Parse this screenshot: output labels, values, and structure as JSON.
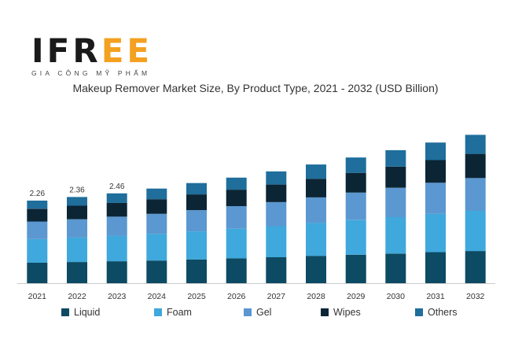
{
  "logo": {
    "text": "IFREE",
    "subtitle": "GIA CÔNG MỸ PHẨM"
  },
  "chart_data": {
    "type": "bar",
    "stacked": true,
    "title": "Makeup Remover Market Size, By Product Type, 2021 - 2032 (USD Billion)",
    "xlabel": "",
    "ylabel": "",
    "ylim": [
      0,
      5
    ],
    "grid": false,
    "legend_position": "bottom",
    "categories": [
      "2021",
      "2022",
      "2023",
      "2024",
      "2025",
      "2026",
      "2027",
      "2028",
      "2029",
      "2030",
      "2031",
      "2032"
    ],
    "series": [
      {
        "name": "Liquid",
        "color": "#0d4a63",
        "values": [
          0.56,
          0.58,
          0.6,
          0.62,
          0.65,
          0.68,
          0.71,
          0.75,
          0.78,
          0.81,
          0.85,
          0.88
        ]
      },
      {
        "name": "Foam",
        "color": "#3fa8dc",
        "values": [
          0.65,
          0.67,
          0.7,
          0.73,
          0.77,
          0.81,
          0.85,
          0.9,
          0.95,
          1.0,
          1.05,
          1.1
        ]
      },
      {
        "name": "Gel",
        "color": "#5b97d0",
        "values": [
          0.48,
          0.5,
          0.52,
          0.55,
          0.58,
          0.62,
          0.66,
          0.7,
          0.75,
          0.8,
          0.85,
          0.9
        ]
      },
      {
        "name": "Wipes",
        "color": "#0b2535",
        "values": [
          0.35,
          0.37,
          0.38,
          0.4,
          0.43,
          0.45,
          0.48,
          0.51,
          0.54,
          0.58,
          0.62,
          0.66
        ]
      },
      {
        "name": "Others",
        "color": "#1f6e9c",
        "values": [
          0.22,
          0.24,
          0.26,
          0.29,
          0.31,
          0.33,
          0.36,
          0.39,
          0.42,
          0.45,
          0.48,
          0.52
        ]
      }
    ],
    "data_labels": [
      {
        "category": "2021",
        "text": "2.26"
      },
      {
        "category": "2022",
        "text": "2.36"
      },
      {
        "category": "2023",
        "text": "2.46"
      }
    ]
  }
}
